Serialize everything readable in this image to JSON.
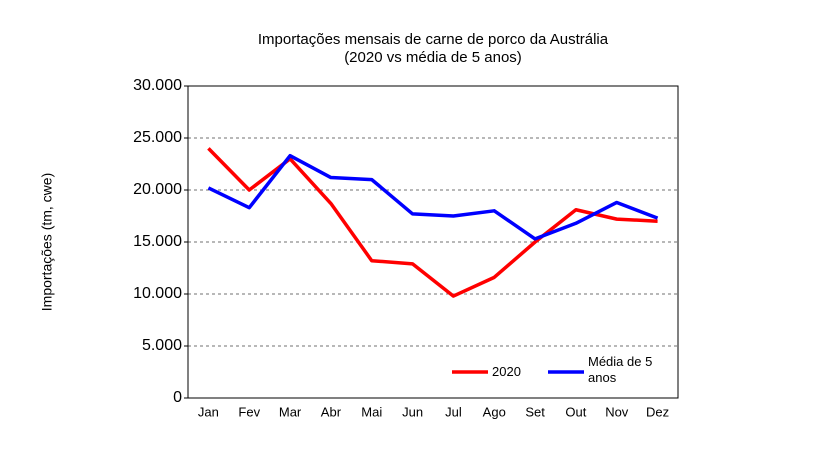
{
  "chart_data": {
    "type": "line",
    "title": "Importações mensais de carne de porco da Austrália",
    "subtitle": "(2020 vs média de 5 anos)",
    "y_label": "Importações (tm, cwe)",
    "categories": [
      "Jan",
      "Fev",
      "Mar",
      "Abr",
      "Mai",
      "Jun",
      "Jul",
      "Ago",
      "Set",
      "Out",
      "Nov",
      "Dez"
    ],
    "series": [
      {
        "name": "2020",
        "color": "#ff0000",
        "values": [
          24000,
          20000,
          23000,
          18700,
          13200,
          12900,
          9800,
          11600,
          15000,
          18100,
          17200,
          17000
        ]
      },
      {
        "name": "Média de 5 anos",
        "color": "#0000ff",
        "values": [
          20200,
          18300,
          23300,
          21200,
          21000,
          17700,
          17500,
          18000,
          15300,
          16800,
          18800,
          17300
        ]
      }
    ],
    "ylim": [
      0,
      30000
    ],
    "yticks": [
      0,
      {
        "value": 5000,
        "label": "5.000"
      },
      {
        "value": 10000,
        "label": "10.000"
      },
      {
        "value": 15000,
        "label": "15.000"
      },
      {
        "value": 20000,
        "label": "20.000"
      },
      {
        "value": 25000,
        "label": "25.000"
      },
      {
        "value": 30000,
        "label": "30.000"
      }
    ],
    "grid": true,
    "legend_position": "lower right"
  }
}
